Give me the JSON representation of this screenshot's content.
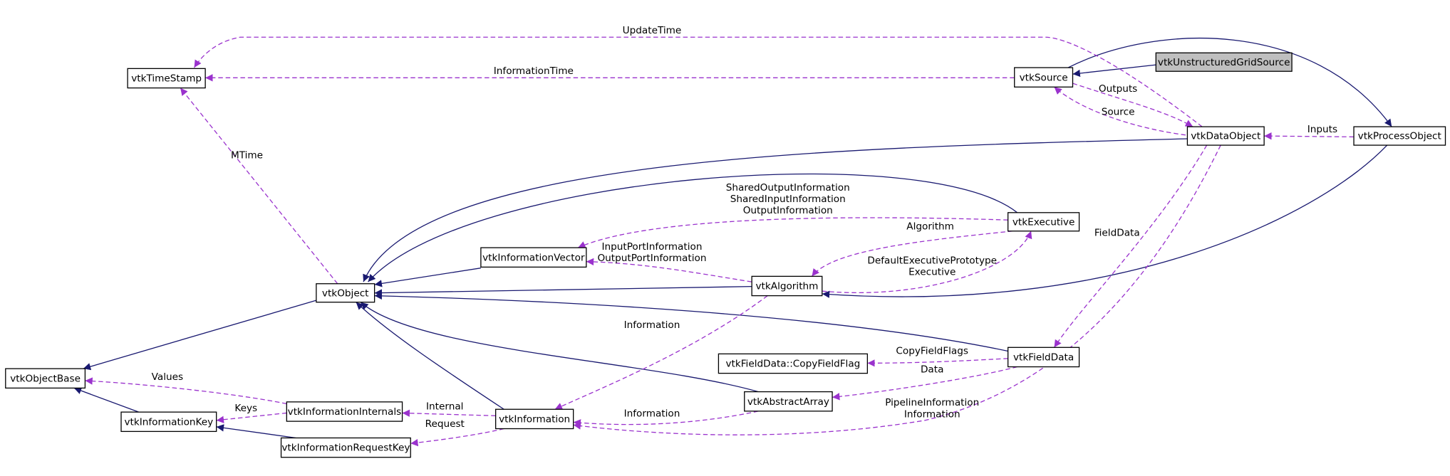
{
  "nodes": [
    {
      "label": "vtkUnstructuredGridSource"
    },
    {
      "label": "vtkSource"
    },
    {
      "label": "vtkTimeStamp"
    },
    {
      "label": "vtkDataObject"
    },
    {
      "label": "vtkProcessObject"
    },
    {
      "label": "vtkExecutive"
    },
    {
      "label": "vtkInformationVector"
    },
    {
      "label": "vtkAlgorithm"
    },
    {
      "label": "vtkObject"
    },
    {
      "label": "vtkFieldData"
    },
    {
      "label": "vtkFieldData::CopyFieldFlag"
    },
    {
      "label": "vtkObjectBase"
    },
    {
      "label": "vtkInformationInternals"
    },
    {
      "label": "vtkAbstractArray"
    },
    {
      "label": "vtkInformation"
    },
    {
      "label": "vtkInformationKey"
    },
    {
      "label": "vtkInformationRequestKey"
    }
  ],
  "edges": [
    {
      "label": [
        "UpdateTime"
      ]
    },
    {
      "label": [
        "InformationTime"
      ]
    },
    {
      "label": [
        "Outputs"
      ]
    },
    {
      "label": [
        "Source"
      ]
    },
    {
      "label": [
        "Inputs"
      ]
    },
    {
      "label": [
        "MTime"
      ]
    },
    {
      "label": [
        "SharedOutputInformation",
        "SharedInputInformation",
        "OutputInformation"
      ]
    },
    {
      "label": [
        "Algorithm"
      ]
    },
    {
      "label": [
        "DefaultExecutivePrototype",
        "Executive"
      ]
    },
    {
      "label": [
        "InputPortInformation",
        "OutputPortInformation"
      ]
    },
    {
      "label": [
        "FieldData"
      ]
    },
    {
      "label": [
        "Information"
      ]
    },
    {
      "label": [
        "CopyFieldFlags"
      ]
    },
    {
      "label": [
        "Data"
      ]
    },
    {
      "label": [
        "Values"
      ]
    },
    {
      "label": [
        "Keys"
      ]
    },
    {
      "label": [
        "Internal"
      ]
    },
    {
      "label": [
        "Request"
      ]
    },
    {
      "label": [
        "Information"
      ]
    },
    {
      "label": [
        "PipelineInformation",
        "Information"
      ]
    }
  ]
}
